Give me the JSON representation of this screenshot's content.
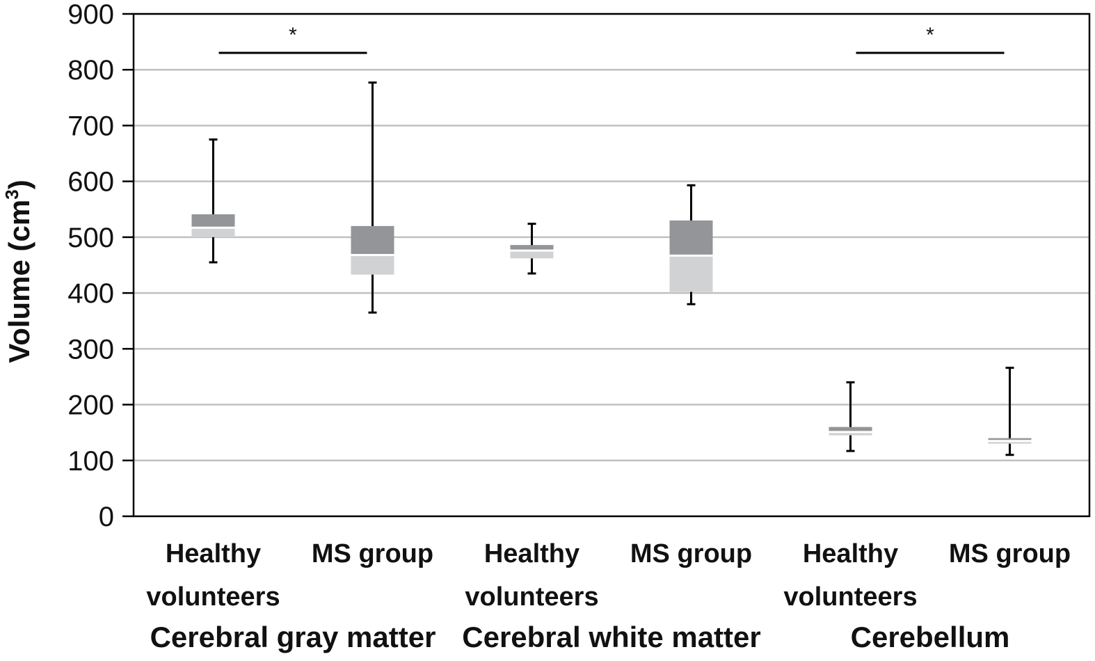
{
  "chart_data": {
    "type": "box",
    "ylabel": "Volume (cm",
    "ylabel_superscript": "3",
    "ylabel_close": ")",
    "ylim": [
      0,
      900
    ],
    "yticks": [
      "0",
      "100",
      "200",
      "300",
      "400",
      "500",
      "600",
      "700",
      "800",
      "900"
    ],
    "grid": true,
    "groups": [
      {
        "name": "Cerebral gray matter",
        "categories": [
          {
            "line1": "Healthy",
            "line2": "volunteers",
            "min": 455,
            "q1": 500,
            "median": 517,
            "q3": 541,
            "max": 675
          },
          {
            "line1": "MS group",
            "line2": "",
            "min": 365,
            "q1": 433,
            "median": 468,
            "q3": 520,
            "max": 777
          }
        ],
        "significance": "*"
      },
      {
        "name": "Cerebral white matter",
        "categories": [
          {
            "line1": "Healthy",
            "line2": "volunteers",
            "min": 435,
            "q1": 462,
            "median": 476,
            "q3": 486,
            "max": 524
          },
          {
            "line1": "MS group",
            "line2": "",
            "min": 380,
            "q1": 402,
            "median": 467,
            "q3": 530,
            "max": 593
          }
        ],
        "significance": ""
      },
      {
        "name": "Cerebellum",
        "categories": [
          {
            "line1": "Healthy",
            "line2": "volunteers",
            "min": 117,
            "q1": 145,
            "median": 151,
            "q3": 160,
            "max": 240
          },
          {
            "line1": "MS group",
            "line2": "",
            "min": 110,
            "q1": 130,
            "median": 135,
            "q3": 140,
            "max": 266
          }
        ],
        "significance": "*"
      }
    ],
    "colors": {
      "upper_box": "#939598",
      "lower_box": "#d1d2d4",
      "grid": "#c0c0c0",
      "axis": "#000000",
      "median_line": "#ffffff"
    }
  }
}
